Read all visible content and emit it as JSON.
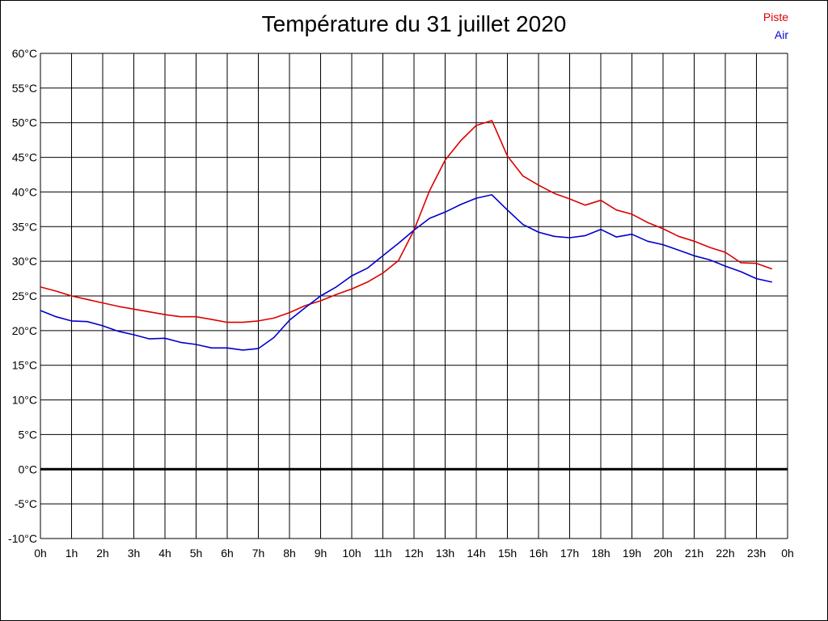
{
  "chart_data": {
    "type": "line",
    "title": "Température du 31 juillet 2020",
    "y_ticks": [
      "60°C",
      "55°C",
      "50°C",
      "45°C",
      "40°C",
      "35°C",
      "30°C",
      "25°C",
      "20°C",
      "15°C",
      "10°C",
      "5°C",
      "0°C",
      "-5°C",
      "-10°C"
    ],
    "x_ticks": [
      "0h",
      "1h",
      "2h",
      "3h",
      "4h",
      "5h",
      "6h",
      "7h",
      "8h",
      "9h",
      "10h",
      "11h",
      "12h",
      "13h",
      "14h",
      "15h",
      "16h",
      "17h",
      "18h",
      "19h",
      "20h",
      "21h",
      "22h",
      "23h",
      "0h"
    ],
    "ylim": [
      -10,
      60
    ],
    "xlim": [
      0,
      24
    ],
    "grid": true,
    "zero_line": true,
    "legend_position": "top-right",
    "x": [
      0,
      0.5,
      1,
      1.5,
      2,
      2.5,
      3,
      3.5,
      4,
      4.5,
      5,
      5.5,
      6,
      6.5,
      7,
      7.5,
      8,
      8.5,
      9,
      9.5,
      10,
      10.5,
      11,
      11.5,
      12,
      12.5,
      13,
      13.5,
      14,
      14.5,
      15,
      15.5,
      16,
      16.5,
      17,
      17.5,
      18,
      18.5,
      19,
      19.5,
      20,
      20.5,
      21,
      21.5,
      22,
      22.5,
      23,
      23.5
    ],
    "series": [
      {
        "name": "Piste",
        "color": "#dd0000",
        "values": [
          26.3,
          25.7,
          25.0,
          24.5,
          24.0,
          23.5,
          23.1,
          22.7,
          22.3,
          22.0,
          22.0,
          21.6,
          21.2,
          21.2,
          21.4,
          21.8,
          22.6,
          23.6,
          24.3,
          25.2,
          26.0,
          27.0,
          28.3,
          30.1,
          34.5,
          40.2,
          44.6,
          47.4,
          49.6,
          50.3,
          45.2,
          42.3,
          41.0,
          39.8,
          39.0,
          38.1,
          38.8,
          37.4,
          36.8,
          35.6,
          34.7,
          33.6,
          32.9,
          32.0,
          31.3,
          29.8,
          29.7,
          28.9
        ]
      },
      {
        "name": "Air",
        "color": "#0000cc",
        "values": [
          22.9,
          22.0,
          21.4,
          21.3,
          20.7,
          19.9,
          19.4,
          18.8,
          18.9,
          18.3,
          18.0,
          17.5,
          17.5,
          17.2,
          17.4,
          19.0,
          21.5,
          23.3,
          25.0,
          26.3,
          27.9,
          29.0,
          30.8,
          32.6,
          34.5,
          36.2,
          37.1,
          38.2,
          39.1,
          39.6,
          37.4,
          35.3,
          34.2,
          33.6,
          33.4,
          33.7,
          34.6,
          33.5,
          33.9,
          32.9,
          32.4,
          31.6,
          30.8,
          30.2,
          29.3,
          28.5,
          27.5,
          27.0
        ]
      }
    ]
  }
}
